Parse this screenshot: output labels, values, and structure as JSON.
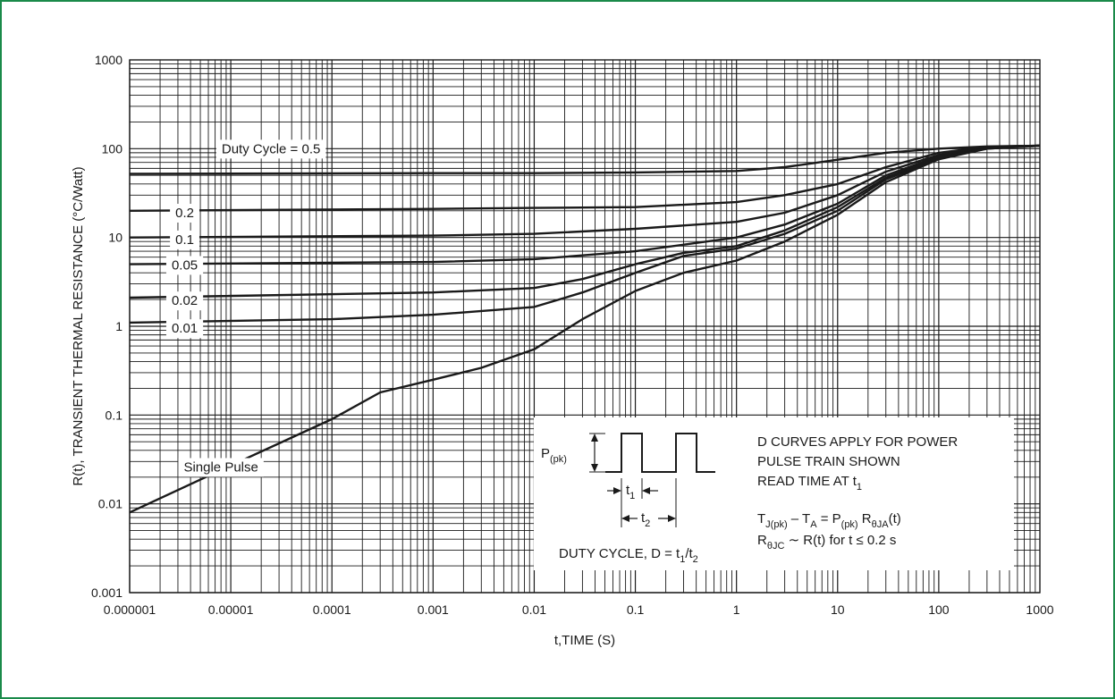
{
  "chart_data": {
    "type": "line",
    "scale": {
      "x": "log",
      "y": "log"
    },
    "xlabel": "t,TIME (S)",
    "ylabel": "R(t), TRANSIENT THERMAL RESISTANCE (°C/Watt)",
    "xlim": [
      1e-06,
      1000
    ],
    "ylim": [
      0.001,
      1000
    ],
    "x_ticks": [
      "0.000001",
      "0.00001",
      "0.0001",
      "0.001",
      "0.01",
      "0.1",
      "1",
      "10",
      "100",
      "1000"
    ],
    "y_ticks": [
      "0.001",
      "0.01",
      "0.1",
      "1",
      "10",
      "100",
      "1000"
    ],
    "grid": true,
    "series": [
      {
        "name": "Duty Cycle = 0.5",
        "label_x": 2.5e-05,
        "label_y": 100,
        "points": [
          [
            1e-06,
            52
          ],
          [
            0.001,
            53
          ],
          [
            0.01,
            53
          ],
          [
            0.1,
            54
          ],
          [
            1,
            56
          ],
          [
            3,
            62
          ],
          [
            10,
            75
          ],
          [
            30,
            90
          ],
          [
            100,
            100
          ],
          [
            300,
            106
          ],
          [
            1000,
            108
          ]
        ]
      },
      {
        "name": "0.2",
        "label_x": 3.5e-06,
        "label_y": 19,
        "points": [
          [
            1e-06,
            20
          ],
          [
            0.001,
            21
          ],
          [
            0.01,
            21.5
          ],
          [
            0.1,
            22
          ],
          [
            1,
            25
          ],
          [
            3,
            30
          ],
          [
            10,
            40
          ],
          [
            30,
            62
          ],
          [
            100,
            90
          ],
          [
            300,
            105
          ],
          [
            1000,
            108
          ]
        ]
      },
      {
        "name": "0.1",
        "label_x": 3.5e-06,
        "label_y": 9.5,
        "points": [
          [
            1e-06,
            10
          ],
          [
            0.001,
            10.5
          ],
          [
            0.01,
            11
          ],
          [
            0.1,
            12.5
          ],
          [
            1,
            15
          ],
          [
            3,
            19
          ],
          [
            10,
            30
          ],
          [
            30,
            55
          ],
          [
            100,
            85
          ],
          [
            300,
            103
          ],
          [
            1000,
            108
          ]
        ]
      },
      {
        "name": "0.05",
        "label_x": 3.5e-06,
        "label_y": 4.9,
        "points": [
          [
            1e-06,
            5
          ],
          [
            0.001,
            5.3
          ],
          [
            0.01,
            5.7
          ],
          [
            0.1,
            7
          ],
          [
            1,
            10
          ],
          [
            3,
            14
          ],
          [
            10,
            24
          ],
          [
            30,
            50
          ],
          [
            100,
            82
          ],
          [
            300,
            102
          ],
          [
            1000,
            108
          ]
        ]
      },
      {
        "name": "0.02",
        "label_x": 3.5e-06,
        "label_y": 1.95,
        "points": [
          [
            1e-06,
            2.1
          ],
          [
            0.001,
            2.4
          ],
          [
            0.01,
            2.7
          ],
          [
            0.03,
            3.4
          ],
          [
            0.1,
            5
          ],
          [
            0.3,
            6.7
          ],
          [
            1,
            8
          ],
          [
            3,
            12
          ],
          [
            10,
            22
          ],
          [
            30,
            47
          ],
          [
            100,
            80
          ],
          [
            300,
            101
          ],
          [
            1000,
            108
          ]
        ]
      },
      {
        "name": "0.01",
        "label_x": 3.5e-06,
        "label_y": 0.95,
        "points": [
          [
            1e-06,
            1.1
          ],
          [
            0.0001,
            1.2
          ],
          [
            0.001,
            1.35
          ],
          [
            0.01,
            1.65
          ],
          [
            0.03,
            2.4
          ],
          [
            0.1,
            4
          ],
          [
            0.3,
            6.2
          ],
          [
            1,
            7.5
          ],
          [
            3,
            11
          ],
          [
            10,
            20
          ],
          [
            30,
            45
          ],
          [
            100,
            78
          ],
          [
            300,
            100
          ],
          [
            1000,
            108
          ]
        ]
      },
      {
        "name": "Single Pulse",
        "label_x": 8e-06,
        "label_y": 0.026,
        "points": [
          [
            1e-06,
            0.008
          ],
          [
            1e-05,
            0.027
          ],
          [
            0.0001,
            0.09
          ],
          [
            0.0003,
            0.18
          ],
          [
            0.001,
            0.25
          ],
          [
            0.003,
            0.34
          ],
          [
            0.01,
            0.55
          ],
          [
            0.03,
            1.2
          ],
          [
            0.1,
            2.5
          ],
          [
            0.3,
            4
          ],
          [
            1,
            5.5
          ],
          [
            3,
            9
          ],
          [
            10,
            18
          ],
          [
            30,
            42
          ],
          [
            100,
            76
          ],
          [
            300,
            100
          ],
          [
            1000,
            108
          ]
        ]
      }
    ]
  },
  "inset": {
    "ppk_label": "P",
    "ppk_sub": "(pk)",
    "t1_label": "t",
    "t1_sub": "1",
    "t2_label": "t",
    "t2_sub": "2",
    "duty_cycle_text": "DUTY CYCLE, D = t",
    "duty_cycle_sub1": "1",
    "duty_cycle_slash": "/t",
    "duty_cycle_sub2": "2",
    "note_line1": "D CURVES APPLY FOR POWER",
    "note_line2": "PULSE TRAIN SHOWN",
    "note_line3": "READ TIME AT t",
    "note_line3_sub": "1",
    "eq1": [
      {
        "t": "T",
        "s": false
      },
      {
        "t": "J(pk)",
        "s": true
      },
      {
        "t": " – T",
        "s": false
      },
      {
        "t": "A",
        "s": true
      },
      {
        "t": " = P",
        "s": false
      },
      {
        "t": "(pk)",
        "s": true
      },
      {
        "t": " R",
        "s": false
      },
      {
        "t": "θJA",
        "s": true
      },
      {
        "t": "(t)",
        "s": false
      }
    ],
    "eq2": [
      {
        "t": "R",
        "s": false
      },
      {
        "t": "θJC",
        "s": true
      },
      {
        "t": " ∼ R(t) for t ≤ 0.2 s",
        "s": false
      }
    ]
  },
  "colors": {
    "frame": "#1a8a4a",
    "curve": "#1a1a1a",
    "grid": "#1a1a1a"
  }
}
